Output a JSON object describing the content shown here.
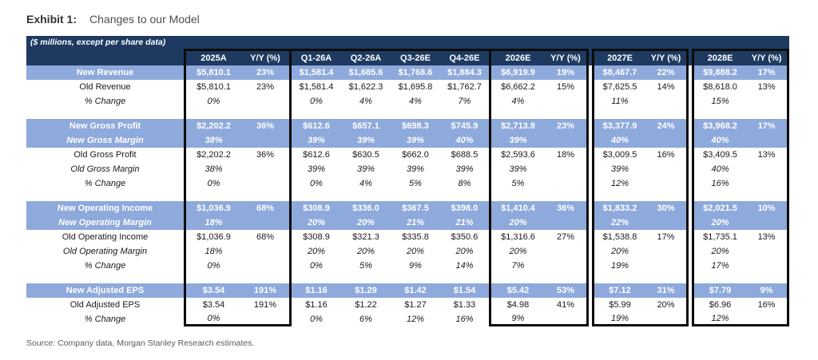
{
  "title": {
    "label": "Exhibit 1:",
    "text": "Changes to our Model"
  },
  "source": "Source: Company data, Morgan Stanley Research estimates.",
  "colors": {
    "header_navy": "#1e3a60",
    "highlight_blue": "#8ea9db",
    "box_border": "#0c0c0c"
  },
  "table": {
    "note": "($ millions, except per share data)",
    "columns": [
      "2025A",
      "Y/Y (%)",
      "Q1-26A",
      "Q2-26A",
      "Q3-26E",
      "Q4-26E",
      "2026E",
      "Y/Y (%)",
      "2027E",
      "Y/Y (%)",
      "2028E",
      "Y/Y (%)"
    ],
    "rows": [
      {
        "label": "New Revenue",
        "style": "new",
        "cells": [
          "$5,810.1",
          "23%",
          "$1,581.4",
          "$1,685.6",
          "$1,768.6",
          "$1,884.3",
          "$6,919.9",
          "19%",
          "$8,467.7",
          "22%",
          "$9,888.2",
          "17%"
        ]
      },
      {
        "label": "Old Revenue",
        "style": "old",
        "cells": [
          "$5,810.1",
          "23%",
          "$1,581.4",
          "$1,622.3",
          "$1,695.8",
          "$1,762.7",
          "$6,662.2",
          "15%",
          "$7,625.5",
          "14%",
          "$8,618.0",
          "13%"
        ]
      },
      {
        "label": "% Change",
        "style": "pct",
        "cells": [
          "0%",
          "",
          "0%",
          "4%",
          "4%",
          "7%",
          "4%",
          "",
          "11%",
          "",
          "15%",
          ""
        ]
      },
      {
        "style": "gap"
      },
      {
        "label": "New Gross Profit",
        "style": "new",
        "cells": [
          "$2,202.2",
          "36%",
          "$612.6",
          "$657.1",
          "$698.3",
          "$745.9",
          "$2,713.9",
          "23%",
          "$3,377.9",
          "24%",
          "$3,968.2",
          "17%"
        ]
      },
      {
        "label": "New Gross Margin",
        "style": "new-margin",
        "cells": [
          "38%",
          "",
          "39%",
          "39%",
          "39%",
          "40%",
          "39%",
          "",
          "40%",
          "",
          "40%",
          ""
        ]
      },
      {
        "label": "Old Gross Profit",
        "style": "old",
        "cells": [
          "$2,202.2",
          "36%",
          "$612.6",
          "$630.5",
          "$662.0",
          "$688.5",
          "$2,593.6",
          "18%",
          "$3,009.5",
          "16%",
          "$3,409.5",
          "13%"
        ]
      },
      {
        "label": "Old Gross Margin",
        "style": "old-margin",
        "cells": [
          "38%",
          "",
          "39%",
          "39%",
          "39%",
          "39%",
          "39%",
          "",
          "39%",
          "",
          "40%",
          ""
        ]
      },
      {
        "label": "% Change",
        "style": "pct",
        "cells": [
          "0%",
          "",
          "0%",
          "4%",
          "5%",
          "8%",
          "5%",
          "",
          "12%",
          "",
          "16%",
          ""
        ]
      },
      {
        "style": "gap"
      },
      {
        "label": "New Operating Income",
        "style": "new",
        "cells": [
          "$1,036.9",
          "68%",
          "$308.9",
          "$336.0",
          "$367.5",
          "$398.0",
          "$1,410.4",
          "36%",
          "$1,833.2",
          "30%",
          "$2,021.5",
          "10%"
        ]
      },
      {
        "label": "New Operating Margin",
        "style": "new-margin",
        "cells": [
          "18%",
          "",
          "20%",
          "20%",
          "21%",
          "21%",
          "20%",
          "",
          "22%",
          "",
          "20%",
          ""
        ]
      },
      {
        "label": "Old Operating Income",
        "style": "old",
        "cells": [
          "$1,036.9",
          "68%",
          "$308.9",
          "$321.3",
          "$335.8",
          "$350.6",
          "$1,316.6",
          "27%",
          "$1,538.8",
          "17%",
          "$1,735.1",
          "13%"
        ]
      },
      {
        "label": "Old Operating Margin",
        "style": "old-margin",
        "cells": [
          "18%",
          "",
          "20%",
          "20%",
          "20%",
          "20%",
          "20%",
          "",
          "20%",
          "",
          "20%",
          ""
        ]
      },
      {
        "label": "% Change",
        "style": "pct",
        "cells": [
          "0%",
          "",
          "0%",
          "5%",
          "9%",
          "14%",
          "7%",
          "",
          "19%",
          "",
          "17%",
          ""
        ]
      },
      {
        "style": "gap"
      },
      {
        "label": "New Adjusted EPS",
        "style": "new",
        "cells": [
          "$3.54",
          "191%",
          "$1.16",
          "$1.29",
          "$1.42",
          "$1.54",
          "$5.42",
          "53%",
          "$7.12",
          "31%",
          "$7.79",
          "9%"
        ]
      },
      {
        "label": "Old Adjusted EPS",
        "style": "old",
        "cells": [
          "$3.54",
          "191%",
          "$1.16",
          "$1.22",
          "$1.27",
          "$1.33",
          "$4.98",
          "41%",
          "$5.99",
          "20%",
          "$6.96",
          "16%"
        ]
      },
      {
        "label": "% Change",
        "style": "pct",
        "cells": [
          "0%",
          "",
          "0%",
          "6%",
          "12%",
          "16%",
          "9%",
          "",
          "19%",
          "",
          "12%",
          ""
        ]
      }
    ]
  }
}
